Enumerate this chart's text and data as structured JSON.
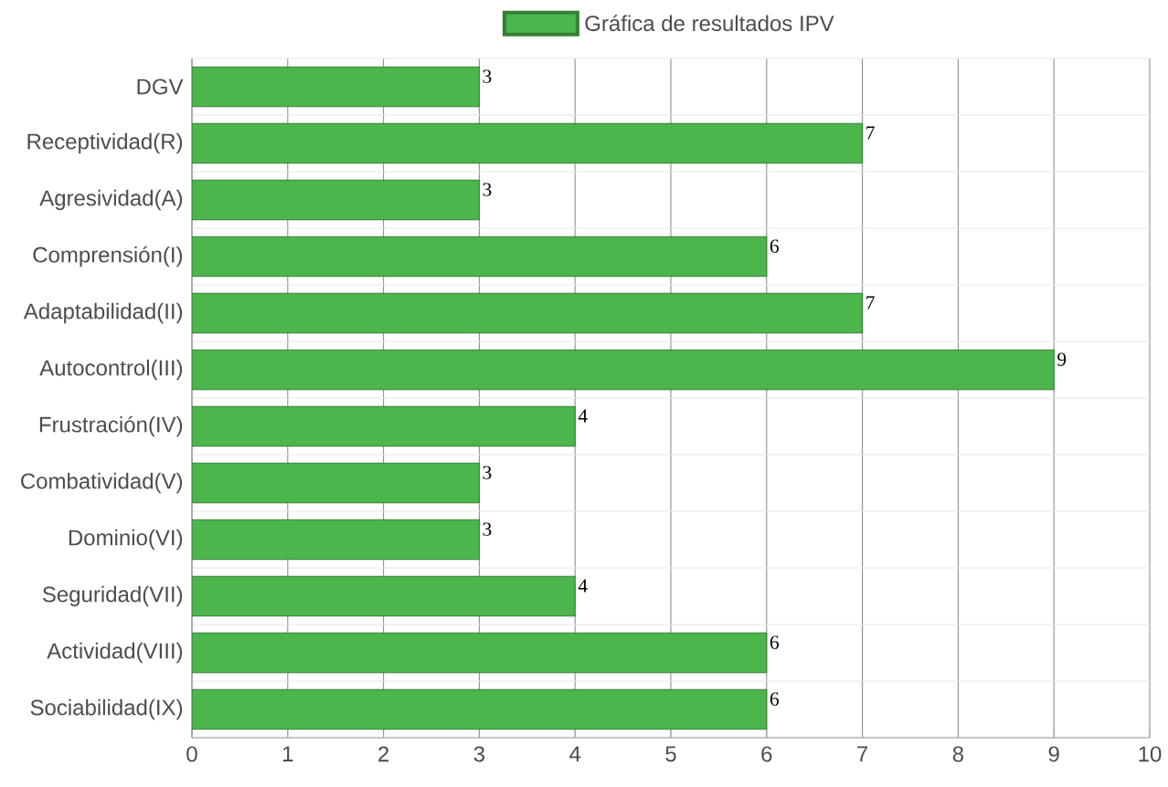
{
  "chart_data": {
    "type": "bar",
    "orientation": "horizontal",
    "categories": [
      "DGV",
      "Receptividad(R)",
      "Agresividad(A)",
      "Comprensión(I)",
      "Adaptabilidad(II)",
      "Autocontrol(III)",
      "Frustración(IV)",
      "Combatividad(V)",
      "Dominio(VI)",
      "Seguridad(VII)",
      "Actividad(VIII)",
      "Sociabilidad(IX)"
    ],
    "series": [
      {
        "name": "Gráfica de resultados IPV",
        "color": "#4cb54c",
        "values": [
          3,
          7,
          3,
          6,
          7,
          9,
          4,
          3,
          3,
          4,
          6,
          6
        ]
      }
    ],
    "xlim": [
      0,
      10
    ],
    "xticks": [
      0,
      1,
      2,
      3,
      4,
      5,
      6,
      7,
      8,
      9,
      10
    ],
    "grid": true,
    "legend": "top",
    "data_labels": true
  }
}
